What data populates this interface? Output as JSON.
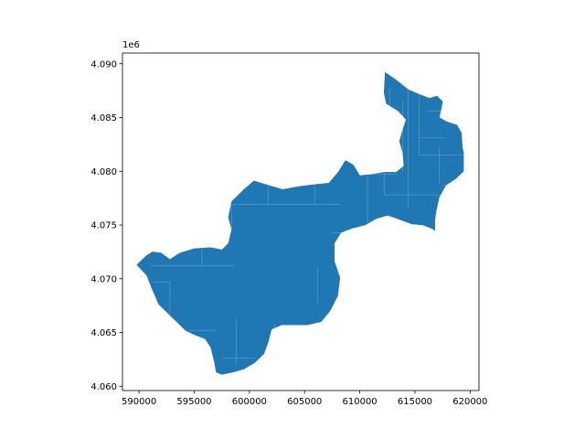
{
  "map": {
    "fill_color": "#1f77b4",
    "edge_color": "#ffffff",
    "y_offset_label": "1e6",
    "x_range": [
      588500,
      620800
    ],
    "y_range": [
      4059600,
      4091000
    ],
    "x_ticks": [
      {
        "value": 590000,
        "label": "590000"
      },
      {
        "value": 595000,
        "label": "595000"
      },
      {
        "value": 600000,
        "label": "600000"
      },
      {
        "value": 605000,
        "label": "605000"
      },
      {
        "value": 610000,
        "label": "610000"
      },
      {
        "value": 615000,
        "label": "615000"
      },
      {
        "value": 620000,
        "label": "620000"
      }
    ],
    "y_ticks": [
      {
        "value": 4060000,
        "label": "4.060"
      },
      {
        "value": 4065000,
        "label": "4.065"
      },
      {
        "value": 4070000,
        "label": "4.070"
      },
      {
        "value": 4075000,
        "label": "4.075"
      },
      {
        "value": 4080000,
        "label": "4.080"
      },
      {
        "value": 4085000,
        "label": "4.085"
      },
      {
        "value": 4090000,
        "label": "4.090"
      }
    ],
    "region_outline": [
      [
        589800,
        4071300
      ],
      [
        590600,
        4072100
      ],
      [
        591200,
        4072500
      ],
      [
        592000,
        4072400
      ],
      [
        592800,
        4071800
      ],
      [
        593700,
        4072400
      ],
      [
        595000,
        4072800
      ],
      [
        596500,
        4072900
      ],
      [
        597500,
        4072700
      ],
      [
        598100,
        4073300
      ],
      [
        598400,
        4074600
      ],
      [
        598100,
        4075700
      ],
      [
        598400,
        4077200
      ],
      [
        599500,
        4078300
      ],
      [
        600400,
        4079100
      ],
      [
        601700,
        4078700
      ],
      [
        603000,
        4078300
      ],
      [
        604600,
        4078600
      ],
      [
        606200,
        4078800
      ],
      [
        607200,
        4078900
      ],
      [
        608100,
        4080000
      ],
      [
        608700,
        4081000
      ],
      [
        609400,
        4080600
      ],
      [
        610000,
        4079600
      ],
      [
        611000,
        4079700
      ],
      [
        612200,
        4079900
      ],
      [
        613300,
        4079900
      ],
      [
        614000,
        4080500
      ],
      [
        613900,
        4081700
      ],
      [
        613600,
        4082800
      ],
      [
        613900,
        4083900
      ],
      [
        614200,
        4084800
      ],
      [
        613500,
        4085600
      ],
      [
        612400,
        4086300
      ],
      [
        612200,
        4087300
      ],
      [
        612300,
        4089200
      ],
      [
        613300,
        4088500
      ],
      [
        614400,
        4087600
      ],
      [
        615300,
        4087200
      ],
      [
        616300,
        4086800
      ],
      [
        617000,
        4087000
      ],
      [
        617500,
        4086500
      ],
      [
        617400,
        4085900
      ],
      [
        617200,
        4085000
      ],
      [
        617900,
        4084600
      ],
      [
        618800,
        4084300
      ],
      [
        619200,
        4083600
      ],
      [
        619300,
        4082200
      ],
      [
        619400,
        4081700
      ],
      [
        619400,
        4080000
      ],
      [
        618700,
        4079300
      ],
      [
        617800,
        4078700
      ],
      [
        617200,
        4077600
      ],
      [
        616900,
        4076200
      ],
      [
        616800,
        4075400
      ],
      [
        616800,
        4074500
      ],
      [
        616500,
        4074700
      ],
      [
        615700,
        4075000
      ],
      [
        614700,
        4075100
      ],
      [
        613400,
        4075600
      ],
      [
        612500,
        4075900
      ],
      [
        611500,
        4075600
      ],
      [
        610500,
        4075000
      ],
      [
        609300,
        4074700
      ],
      [
        608300,
        4074300
      ],
      [
        607700,
        4073300
      ],
      [
        607700,
        4071600
      ],
      [
        608200,
        4070100
      ],
      [
        608000,
        4068400
      ],
      [
        607300,
        4067000
      ],
      [
        606500,
        4066000
      ],
      [
        605200,
        4065700
      ],
      [
        604000,
        4065700
      ],
      [
        602900,
        4065700
      ],
      [
        602000,
        4065300
      ],
      [
        601700,
        4064100
      ],
      [
        601300,
        4063000
      ],
      [
        600500,
        4062200
      ],
      [
        599500,
        4061600
      ],
      [
        598500,
        4061300
      ],
      [
        597500,
        4061100
      ],
      [
        597000,
        4061300
      ],
      [
        596800,
        4062400
      ],
      [
        596500,
        4063600
      ],
      [
        596000,
        4064400
      ],
      [
        595000,
        4064800
      ],
      [
        594200,
        4065200
      ],
      [
        593600,
        4065800
      ],
      [
        593000,
        4066400
      ],
      [
        592400,
        4067000
      ],
      [
        591800,
        4067600
      ],
      [
        591200,
        4069000
      ],
      [
        590700,
        4070300
      ]
    ],
    "internal_boundaries": [
      [
        [
          591000,
          4071200
        ],
        [
          598700,
          4071200
        ]
      ],
      [
        [
          591300,
          4069700
        ],
        [
          592800,
          4069700
        ]
      ],
      [
        [
          592800,
          4069700
        ],
        [
          592800,
          4065800
        ]
      ],
      [
        [
          595700,
          4072800
        ],
        [
          595700,
          4071200
        ]
      ],
      [
        [
          594500,
          4065200
        ],
        [
          597000,
          4065200
        ]
      ],
      [
        [
          598800,
          4066300
        ],
        [
          598800,
          4062000
        ]
      ],
      [
        [
          597500,
          4062600
        ],
        [
          600500,
          4062600
        ]
      ],
      [
        [
          598400,
          4074600
        ],
        [
          598400,
          4076900
        ]
      ],
      [
        [
          598400,
          4076900
        ],
        [
          601000,
          4076900
        ]
      ],
      [
        [
          602300,
          4065800
        ],
        [
          602300,
          4063200
        ]
      ],
      [
        [
          602900,
          4065700
        ],
        [
          606500,
          4065700
        ]
      ],
      [
        [
          601700,
          4079000
        ],
        [
          601700,
          4076900
        ]
      ],
      [
        [
          605900,
          4078700
        ],
        [
          605900,
          4076900
        ]
      ],
      [
        [
          601000,
          4076900
        ],
        [
          608200,
          4076900
        ]
      ],
      [
        [
          607400,
          4074300
        ],
        [
          612500,
          4074300
        ]
      ],
      [
        [
          610700,
          4079600
        ],
        [
          610700,
          4075000
        ]
      ],
      [
        [
          610500,
          4079700
        ],
        [
          613300,
          4079700
        ]
      ],
      [
        [
          612200,
          4079900
        ],
        [
          612200,
          4077800
        ]
      ],
      [
        [
          612200,
          4077800
        ],
        [
          617200,
          4077800
        ]
      ],
      [
        [
          614400,
          4087600
        ],
        [
          614400,
          4076500
        ]
      ],
      [
        [
          615400,
          4087200
        ],
        [
          615400,
          4081500
        ]
      ],
      [
        [
          615400,
          4081500
        ],
        [
          619400,
          4081500
        ]
      ],
      [
        [
          616200,
          4085600
        ],
        [
          617500,
          4085600
        ]
      ],
      [
        [
          615400,
          4083100
        ],
        [
          617700,
          4083100
        ]
      ],
      [
        [
          612700,
          4087800
        ],
        [
          612700,
          4085800
        ]
      ],
      [
        [
          613900,
          4086500
        ],
        [
          613900,
          4080000
        ]
      ],
      [
        [
          617500,
          4078700
        ],
        [
          619400,
          4078700
        ]
      ],
      [
        [
          617200,
          4082200
        ],
        [
          617200,
          4078700
        ]
      ],
      [
        [
          606200,
          4067600
        ],
        [
          606200,
          4071000
        ]
      ],
      [
        [
          607700,
          4072000
        ],
        [
          609500,
          4072000
        ]
      ]
    ]
  }
}
